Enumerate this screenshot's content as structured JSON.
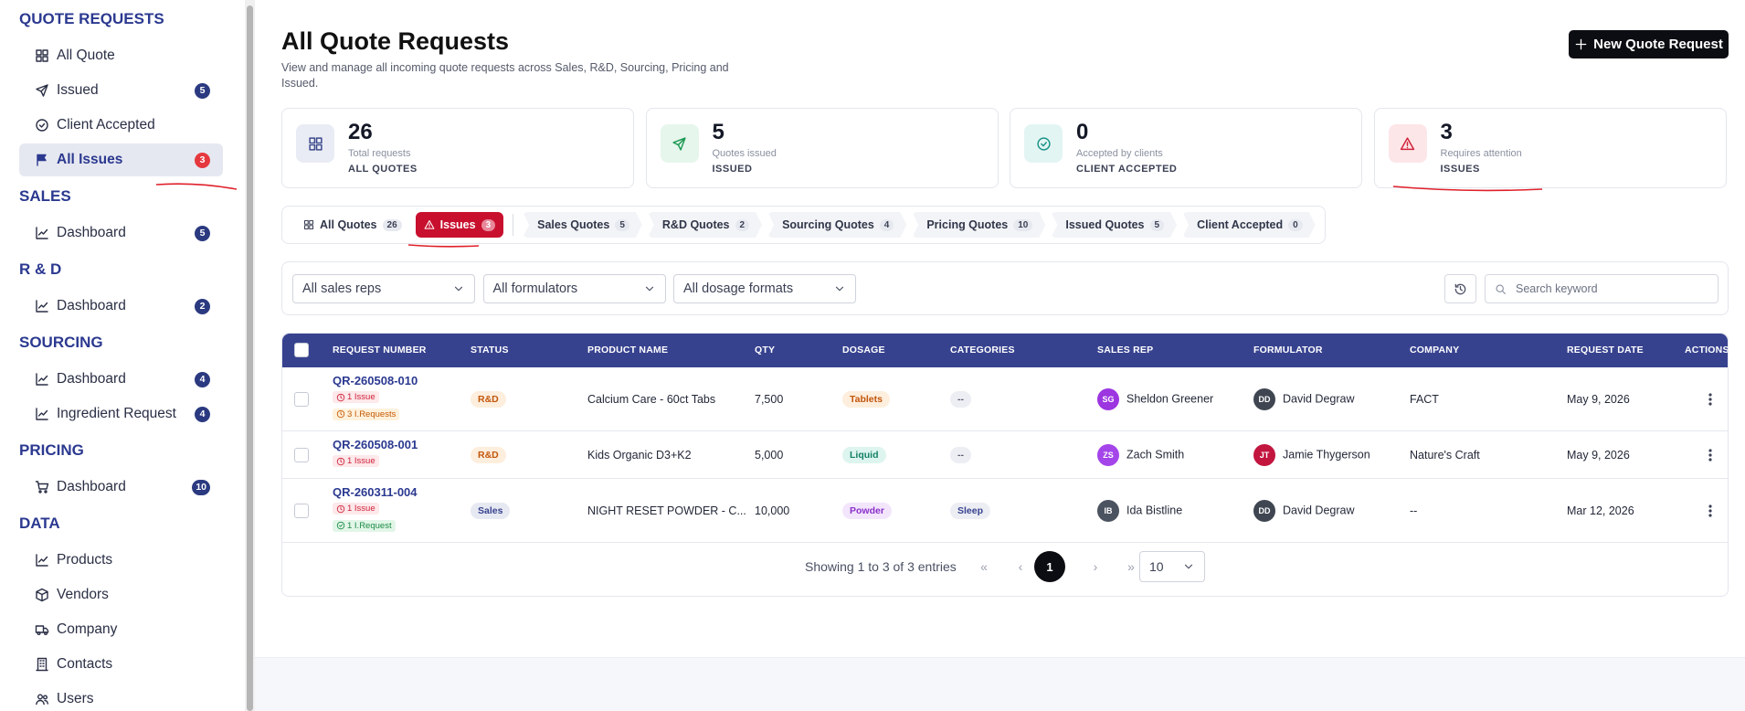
{
  "sidebar": {
    "sections": [
      {
        "title": "QUOTE REQUESTS",
        "items": [
          {
            "label": "All Quote"
          },
          {
            "label": "Issued",
            "badge": 5
          },
          {
            "label": "Client Accepted"
          },
          {
            "label": "All Issues",
            "badge": 3,
            "badge_style": "alert",
            "active": true
          }
        ]
      },
      {
        "title": "SALES",
        "items": [
          {
            "label": "Dashboard",
            "badge": 5
          }
        ]
      },
      {
        "title": "R & D",
        "items": [
          {
            "label": "Dashboard",
            "badge": 2
          }
        ]
      },
      {
        "title": "SOURCING",
        "items": [
          {
            "label": "Dashboard",
            "badge": 4
          },
          {
            "label": "Ingredient Request",
            "badge": 4
          }
        ]
      },
      {
        "title": "PRICING",
        "items": [
          {
            "label": "Dashboard",
            "badge": 10
          }
        ]
      },
      {
        "title": "DATA",
        "items": [
          {
            "label": "Products"
          },
          {
            "label": "Vendors"
          },
          {
            "label": "Company"
          },
          {
            "label": "Contacts"
          },
          {
            "label": "Users"
          }
        ]
      }
    ]
  },
  "header": {
    "title": "All Quote Requests",
    "subtitle": "View and manage all incoming quote requests across Sales, R&D, Sourcing, Pricing and Issued.",
    "button": "New Quote Request"
  },
  "stats": [
    {
      "value": 26,
      "caption": "Total requests",
      "label": "ALL QUOTES",
      "color": "#e9ecf4",
      "icon_color": "#3d4a8c"
    },
    {
      "value": 5,
      "caption": "Quotes issued",
      "label": "ISSUED",
      "color": "#e6f6ec",
      "icon_color": "#1f9a55"
    },
    {
      "value": 0,
      "caption": "Accepted by clients",
      "label": "CLIENT ACCEPTED",
      "color": "#e3f5f3",
      "icon_color": "#1a9488"
    },
    {
      "value": 3,
      "caption": "Requires attention",
      "label": "ISSUES",
      "color": "#fde6e8",
      "icon_color": "#d0223a"
    }
  ],
  "tabs": [
    {
      "label": "All Quotes",
      "count": 26
    },
    {
      "label": "Issues",
      "count": 3,
      "active": true
    },
    {
      "label": "Sales Quotes",
      "count": 5
    },
    {
      "label": "R&D Quotes",
      "count": 2
    },
    {
      "label": "Sourcing Quotes",
      "count": 4
    },
    {
      "label": "Pricing Quotes",
      "count": 10
    },
    {
      "label": "Issued Quotes",
      "count": 5
    },
    {
      "label": "Client Accepted",
      "count": 0
    }
  ],
  "filters": [
    "All sales reps",
    "All formulators",
    "All dosage formats"
  ],
  "search_placeholder": "Search keyword",
  "table": {
    "columns": [
      "REQUEST NUMBER",
      "STATUS",
      "PRODUCT NAME",
      "QTY",
      "DOSAGE",
      "CATEGORIES",
      "SALES REP",
      "FORMULATOR",
      "COMPANY",
      "REQUEST DATE",
      "ACTIONS"
    ],
    "rows": [
      {
        "request_number": "QR-260508-010",
        "flags": [
          {
            "text": "1 Issue",
            "style": "issue"
          },
          {
            "text": "3 I.Requests",
            "style": "request"
          }
        ],
        "status": "R&D",
        "product": "Calcium Care - 60ct Tabs",
        "qty": "7,500",
        "dosage": "Tablets",
        "category": "--",
        "sales_rep": {
          "initials": "SG",
          "name": "Sheldon Greener",
          "color": "#9b36e0"
        },
        "formulator": {
          "initials": "DD",
          "name": "David Degraw",
          "color": "#3f4651"
        },
        "company": "FACT",
        "date": "May 9, 2026"
      },
      {
        "request_number": "QR-260508-001",
        "flags": [
          {
            "text": "1 Issue",
            "style": "issue"
          }
        ],
        "status": "R&D",
        "product": "Kids Organic D3+K2",
        "qty": "5,000",
        "dosage": "Liquid",
        "category": "--",
        "sales_rep": {
          "initials": "ZS",
          "name": "Zach Smith",
          "color": "#a445ea"
        },
        "formulator": {
          "initials": "JT",
          "name": "Jamie Thygerson",
          "color": "#c2163f"
        },
        "company": "Nature's Craft",
        "date": "May 9, 2026"
      },
      {
        "request_number": "QR-260311-004",
        "flags": [
          {
            "text": "1 Issue",
            "style": "issue"
          },
          {
            "text": "1 I.Request",
            "style": "resolved"
          }
        ],
        "status": "Sales",
        "product": "NIGHT RESET POWDER - C...",
        "qty": "10,000",
        "dosage": "Powder",
        "category": "Sleep",
        "sales_rep": {
          "initials": "IB",
          "name": "Ida Bistline",
          "color": "#4b5360"
        },
        "formulator": {
          "initials": "DD",
          "name": "David Degraw",
          "color": "#3f4651"
        },
        "company": "--",
        "date": "Mar 12, 2026"
      }
    ]
  },
  "pagination": {
    "summary": "Showing 1 to 3 of 3 entries",
    "current_page": 1,
    "page_size": 10
  }
}
